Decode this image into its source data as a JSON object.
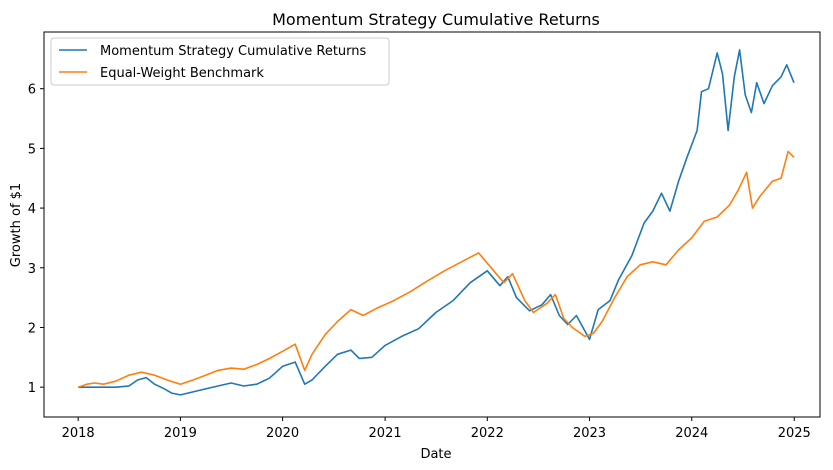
{
  "chart_data": {
    "type": "line",
    "title": "Momentum Strategy Cumulative Returns",
    "xlabel": "Date",
    "ylabel": "Growth of $1",
    "x_axis_type": "date",
    "xlim": [
      "2017-09-01",
      "2025-04-03"
    ],
    "ylim": [
      0.5,
      6.95
    ],
    "x_ticks": [
      {
        "date": "2018-01-01",
        "label": "2018"
      },
      {
        "date": "2019-01-01",
        "label": "2019"
      },
      {
        "date": "2020-01-01",
        "label": "2020"
      },
      {
        "date": "2021-01-01",
        "label": "2021"
      },
      {
        "date": "2022-01-01",
        "label": "2022"
      },
      {
        "date": "2023-01-01",
        "label": "2023"
      },
      {
        "date": "2024-01-01",
        "label": "2024"
      },
      {
        "date": "2025-01-01",
        "label": "2025"
      }
    ],
    "y_ticks": [
      1,
      2,
      3,
      4,
      5,
      6
    ],
    "grid": false,
    "legend": "top-left",
    "series": [
      {
        "name": "Momentum Strategy Cumulative Returns",
        "color": "#1f77b4",
        "points": [
          [
            "2018-01-01",
            1.0
          ],
          [
            "2018-02-15",
            1.0
          ],
          [
            "2018-04-01",
            1.0
          ],
          [
            "2018-05-15",
            1.0
          ],
          [
            "2018-07-01",
            1.02
          ],
          [
            "2018-08-01",
            1.12
          ],
          [
            "2018-09-01",
            1.16
          ],
          [
            "2018-10-01",
            1.05
          ],
          [
            "2018-11-01",
            0.98
          ],
          [
            "2018-12-01",
            0.9
          ],
          [
            "2019-01-01",
            0.87
          ],
          [
            "2019-02-15",
            0.92
          ],
          [
            "2019-04-01",
            0.97
          ],
          [
            "2019-05-15",
            1.02
          ],
          [
            "2019-07-01",
            1.07
          ],
          [
            "2019-08-15",
            1.02
          ],
          [
            "2019-10-01",
            1.05
          ],
          [
            "2019-11-15",
            1.15
          ],
          [
            "2020-01-01",
            1.35
          ],
          [
            "2020-02-15",
            1.42
          ],
          [
            "2020-03-20",
            1.05
          ],
          [
            "2020-04-15",
            1.12
          ],
          [
            "2020-06-01",
            1.35
          ],
          [
            "2020-07-15",
            1.55
          ],
          [
            "2020-09-01",
            1.62
          ],
          [
            "2020-10-01",
            1.48
          ],
          [
            "2020-11-15",
            1.5
          ],
          [
            "2021-01-01",
            1.7
          ],
          [
            "2021-03-01",
            1.85
          ],
          [
            "2021-05-01",
            1.98
          ],
          [
            "2021-07-01",
            2.25
          ],
          [
            "2021-09-01",
            2.45
          ],
          [
            "2021-11-01",
            2.75
          ],
          [
            "2022-01-01",
            2.95
          ],
          [
            "2022-02-15",
            2.7
          ],
          [
            "2022-03-15",
            2.85
          ],
          [
            "2022-04-15",
            2.5
          ],
          [
            "2022-06-01",
            2.28
          ],
          [
            "2022-07-15",
            2.38
          ],
          [
            "2022-08-15",
            2.55
          ],
          [
            "2022-09-15",
            2.2
          ],
          [
            "2022-10-15",
            2.05
          ],
          [
            "2022-11-15",
            2.2
          ],
          [
            "2023-01-01",
            1.8
          ],
          [
            "2023-02-01",
            2.3
          ],
          [
            "2023-03-15",
            2.45
          ],
          [
            "2023-04-15",
            2.8
          ],
          [
            "2023-06-01",
            3.2
          ],
          [
            "2023-07-15",
            3.75
          ],
          [
            "2023-08-15",
            3.95
          ],
          [
            "2023-09-15",
            4.25
          ],
          [
            "2023-10-15",
            3.95
          ],
          [
            "2023-11-15",
            4.45
          ],
          [
            "2023-12-15",
            4.85
          ],
          [
            "2024-01-20",
            5.3
          ],
          [
            "2024-02-05",
            5.95
          ],
          [
            "2024-03-01",
            6.0
          ],
          [
            "2024-04-01",
            6.6
          ],
          [
            "2024-04-20",
            6.25
          ],
          [
            "2024-05-10",
            5.3
          ],
          [
            "2024-06-01",
            6.2
          ],
          [
            "2024-06-20",
            6.65
          ],
          [
            "2024-07-10",
            5.9
          ],
          [
            "2024-08-01",
            5.6
          ],
          [
            "2024-08-20",
            6.1
          ],
          [
            "2024-09-15",
            5.75
          ],
          [
            "2024-10-15",
            6.05
          ],
          [
            "2024-11-15",
            6.2
          ],
          [
            "2024-12-05",
            6.4
          ],
          [
            "2024-12-31",
            6.1
          ]
        ]
      },
      {
        "name": "Equal-Weight Benchmark",
        "color": "#ff7f0e",
        "points": [
          [
            "2018-01-01",
            1.0
          ],
          [
            "2018-02-01",
            1.05
          ],
          [
            "2018-03-01",
            1.07
          ],
          [
            "2018-04-01",
            1.05
          ],
          [
            "2018-05-15",
            1.1
          ],
          [
            "2018-07-01",
            1.2
          ],
          [
            "2018-08-15",
            1.25
          ],
          [
            "2018-10-01",
            1.2
          ],
          [
            "2018-11-15",
            1.12
          ],
          [
            "2019-01-01",
            1.05
          ],
          [
            "2019-02-15",
            1.12
          ],
          [
            "2019-04-01",
            1.2
          ],
          [
            "2019-05-15",
            1.28
          ],
          [
            "2019-07-01",
            1.32
          ],
          [
            "2019-08-15",
            1.3
          ],
          [
            "2019-10-01",
            1.38
          ],
          [
            "2019-11-15",
            1.48
          ],
          [
            "2020-01-01",
            1.6
          ],
          [
            "2020-02-15",
            1.72
          ],
          [
            "2020-03-20",
            1.28
          ],
          [
            "2020-04-15",
            1.55
          ],
          [
            "2020-06-01",
            1.88
          ],
          [
            "2020-07-15",
            2.1
          ],
          [
            "2020-09-01",
            2.3
          ],
          [
            "2020-10-15",
            2.2
          ],
          [
            "2020-12-01",
            2.32
          ],
          [
            "2021-02-01",
            2.45
          ],
          [
            "2021-04-01",
            2.6
          ],
          [
            "2021-06-01",
            2.78
          ],
          [
            "2021-08-01",
            2.95
          ],
          [
            "2021-10-01",
            3.1
          ],
          [
            "2021-12-01",
            3.25
          ],
          [
            "2022-01-15",
            3.0
          ],
          [
            "2022-03-01",
            2.75
          ],
          [
            "2022-04-01",
            2.9
          ],
          [
            "2022-05-15",
            2.45
          ],
          [
            "2022-06-15",
            2.25
          ],
          [
            "2022-08-01",
            2.4
          ],
          [
            "2022-09-01",
            2.55
          ],
          [
            "2022-10-01",
            2.15
          ],
          [
            "2022-11-01",
            2.0
          ],
          [
            "2022-12-15",
            1.85
          ],
          [
            "2023-01-15",
            1.9
          ],
          [
            "2023-02-15",
            2.1
          ],
          [
            "2023-04-01",
            2.5
          ],
          [
            "2023-05-15",
            2.85
          ],
          [
            "2023-07-01",
            3.05
          ],
          [
            "2023-08-15",
            3.1
          ],
          [
            "2023-10-01",
            3.05
          ],
          [
            "2023-11-15",
            3.3
          ],
          [
            "2024-01-01",
            3.5
          ],
          [
            "2024-02-15",
            3.78
          ],
          [
            "2024-04-01",
            3.85
          ],
          [
            "2024-05-15",
            4.05
          ],
          [
            "2024-06-15",
            4.3
          ],
          [
            "2024-07-15",
            4.6
          ],
          [
            "2024-08-05",
            4.0
          ],
          [
            "2024-09-01",
            4.2
          ],
          [
            "2024-10-15",
            4.45
          ],
          [
            "2024-11-15",
            4.5
          ],
          [
            "2024-12-10",
            4.95
          ],
          [
            "2024-12-31",
            4.85
          ]
        ]
      }
    ]
  }
}
